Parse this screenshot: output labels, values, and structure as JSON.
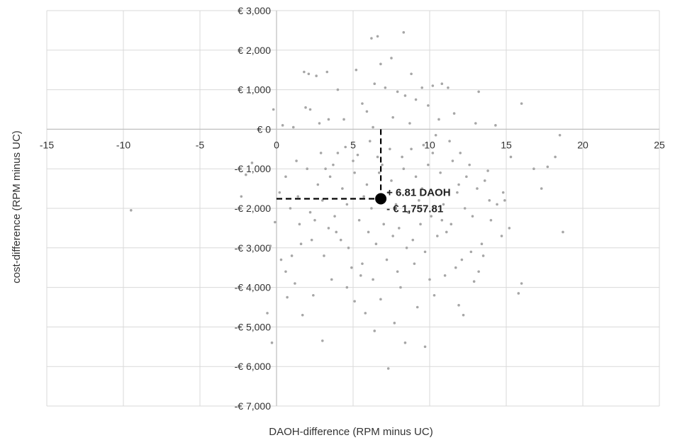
{
  "chart_data": {
    "type": "scatter",
    "title": "",
    "xlabel": "DAOH-difference (RPM minus UC)",
    "ylabel": "cost-difference (RPM minus UC)",
    "xlim": [
      -15,
      25
    ],
    "ylim": [
      -7000,
      3000
    ],
    "x_ticks": [
      -15,
      -10,
      -5,
      0,
      5,
      10,
      15,
      20,
      25
    ],
    "x_tick_labels": [
      "-15",
      "-10",
      "-5",
      "0",
      "5",
      "10",
      "15",
      "20",
      "25"
    ],
    "y_ticks": [
      3000,
      2000,
      1000,
      0,
      -1000,
      -2000,
      -3000,
      -4000,
      -5000,
      -6000,
      -7000
    ],
    "y_tick_labels": [
      "€ 3,000",
      "€ 2,000",
      "€ 1,000",
      "€ 0",
      "-€ 1,000",
      "-€ 2,000",
      "-€ 3,000",
      "-€ 4,000",
      "-€ 5,000",
      "-€ 6,000",
      "-€ 7,000"
    ],
    "grid": true,
    "point_color": "#a6a6a6",
    "mean_marker_color": "#000000",
    "mean_point": {
      "x": 6.81,
      "y": -1757.81
    },
    "annotations": [
      "+ 6.81 DAOH",
      "- € 1,757.81"
    ],
    "series": [
      {
        "points": [
          [
            6.2,
            2300
          ],
          [
            6.6,
            2350
          ],
          [
            8.3,
            2450
          ],
          [
            7.5,
            1800
          ],
          [
            6.8,
            1650
          ],
          [
            5.2,
            1500
          ],
          [
            8.8,
            1400
          ],
          [
            1.8,
            1450
          ],
          [
            2.1,
            1400
          ],
          [
            2.6,
            1350
          ],
          [
            3.3,
            1450
          ],
          [
            4.0,
            1000
          ],
          [
            6.4,
            1150
          ],
          [
            7.1,
            1050
          ],
          [
            7.9,
            950
          ],
          [
            9.5,
            1050
          ],
          [
            10.2,
            1100
          ],
          [
            10.8,
            1150
          ],
          [
            11.2,
            1050
          ],
          [
            13.2,
            950
          ],
          [
            8.4,
            850
          ],
          [
            9.1,
            750
          ],
          [
            5.6,
            650
          ],
          [
            1.9,
            550
          ],
          [
            2.2,
            500
          ],
          [
            -0.2,
            500
          ],
          [
            4.4,
            250
          ],
          [
            3.4,
            250
          ],
          [
            5.9,
            450
          ],
          [
            7.6,
            300
          ],
          [
            9.9,
            600
          ],
          [
            11.6,
            400
          ],
          [
            16.0,
            650
          ],
          [
            13.0,
            150
          ],
          [
            14.3,
            100
          ],
          [
            2.8,
            150
          ],
          [
            0.4,
            100
          ],
          [
            1.1,
            50
          ],
          [
            6.3,
            50
          ],
          [
            8.7,
            150
          ],
          [
            10.6,
            250
          ],
          [
            17.7,
            -950
          ],
          [
            16.8,
            -1000
          ],
          [
            18.2,
            -700
          ],
          [
            18.5,
            -150
          ],
          [
            17.3,
            -1500
          ],
          [
            18.7,
            -2600
          ],
          [
            16.0,
            -3900
          ],
          [
            15.8,
            -4150
          ],
          [
            15.2,
            -2500
          ],
          [
            14.7,
            -2700
          ],
          [
            14.8,
            -1600
          ],
          [
            14.9,
            -1800
          ],
          [
            15.3,
            -700
          ],
          [
            13.8,
            -1050
          ],
          [
            13.5,
            -3200
          ],
          [
            13.2,
            -3600
          ],
          [
            12.9,
            -3850
          ],
          [
            11.9,
            -4450
          ],
          [
            12.2,
            -4700
          ],
          [
            9.7,
            -5500
          ],
          [
            8.4,
            -5400
          ],
          [
            7.3,
            -6050
          ],
          [
            6.4,
            -5100
          ],
          [
            5.8,
            -4650
          ],
          [
            5.1,
            -4350
          ],
          [
            3.0,
            -5350
          ],
          [
            1.7,
            -4700
          ],
          [
            0.7,
            -4250
          ],
          [
            -0.6,
            -4650
          ],
          [
            -0.3,
            -5400
          ],
          [
            -9.5,
            -2050
          ],
          [
            -2.3,
            -1700
          ],
          [
            -2.0,
            -1150
          ],
          [
            -1.6,
            -850
          ],
          [
            -0.4,
            -2950
          ],
          [
            -0.1,
            -2350
          ],
          [
            0.3,
            -3300
          ],
          [
            0.6,
            -3600
          ],
          [
            1.2,
            -3900
          ],
          [
            2.4,
            -4200
          ],
          [
            3.6,
            -3800
          ],
          [
            4.6,
            -4000
          ],
          [
            5.5,
            -3700
          ],
          [
            6.8,
            -4300
          ],
          [
            7.7,
            -4900
          ],
          [
            9.2,
            -4500
          ],
          [
            10.3,
            -4200
          ],
          [
            11.0,
            -3700
          ],
          [
            12.1,
            -3300
          ],
          [
            13.4,
            -2900
          ],
          [
            14.0,
            -2300
          ],
          [
            14.4,
            -1900
          ],
          [
            13.6,
            -1300
          ],
          [
            12.6,
            -900
          ],
          [
            12.0,
            -600
          ],
          [
            11.3,
            -300
          ],
          [
            10.4,
            -150
          ],
          [
            9.6,
            -400
          ],
          [
            8.2,
            -700
          ],
          [
            7.4,
            -500
          ],
          [
            6.1,
            -300
          ],
          [
            5.3,
            -650
          ],
          [
            4.5,
            -450
          ],
          [
            3.7,
            -900
          ],
          [
            2.9,
            -600
          ],
          [
            2.0,
            -1000
          ],
          [
            1.3,
            -800
          ],
          [
            0.6,
            -1200
          ],
          [
            0.2,
            -1600
          ],
          [
            0.9,
            -2000
          ],
          [
            1.5,
            -2400
          ],
          [
            2.3,
            -2800
          ],
          [
            3.1,
            -3200
          ],
          [
            3.9,
            -2600
          ],
          [
            4.7,
            -3000
          ],
          [
            5.6,
            -3400
          ],
          [
            6.5,
            -2900
          ],
          [
            7.2,
            -3300
          ],
          [
            8.0,
            -2500
          ],
          [
            8.9,
            -2800
          ],
          [
            9.7,
            -3100
          ],
          [
            10.5,
            -2700
          ],
          [
            11.4,
            -2400
          ],
          [
            12.3,
            -2000
          ],
          [
            11.8,
            -1600
          ],
          [
            10.9,
            -1900
          ],
          [
            10.1,
            -2200
          ],
          [
            9.3,
            -1800
          ],
          [
            8.6,
            -2100
          ],
          [
            7.8,
            -1900
          ],
          [
            7.0,
            -2400
          ],
          [
            6.2,
            -2000
          ],
          [
            5.4,
            -2300
          ],
          [
            4.6,
            -1900
          ],
          [
            3.8,
            -2200
          ],
          [
            3.0,
            -1800
          ],
          [
            2.2,
            -2100
          ],
          [
            1.4,
            -1700
          ],
          [
            2.7,
            -1400
          ],
          [
            3.5,
            -1200
          ],
          [
            4.3,
            -1500
          ],
          [
            5.1,
            -1100
          ],
          [
            5.9,
            -1400
          ],
          [
            6.7,
            -1100
          ],
          [
            7.5,
            -1300
          ],
          [
            8.3,
            -1000
          ],
          [
            9.1,
            -1200
          ],
          [
            9.9,
            -900
          ],
          [
            10.7,
            -1100
          ],
          [
            11.5,
            -800
          ],
          [
            12.4,
            -1200
          ],
          [
            13.1,
            -1500
          ],
          [
            13.9,
            -1800
          ],
          [
            12.8,
            -2200
          ],
          [
            11.1,
            -2600
          ],
          [
            9.4,
            -2400
          ],
          [
            8.5,
            -3000
          ],
          [
            7.6,
            -2700
          ],
          [
            6.0,
            -2600
          ],
          [
            4.2,
            -2800
          ],
          [
            3.4,
            -2500
          ],
          [
            2.5,
            -2300
          ],
          [
            1.6,
            -2900
          ],
          [
            1.0,
            -3200
          ],
          [
            4.9,
            -3500
          ],
          [
            6.3,
            -3800
          ],
          [
            7.9,
            -3600
          ],
          [
            9.0,
            -3400
          ],
          [
            10.0,
            -3800
          ],
          [
            11.7,
            -3500
          ],
          [
            12.7,
            -3100
          ],
          [
            8.1,
            -4000
          ],
          [
            5.0,
            -800
          ],
          [
            6.6,
            -700
          ],
          [
            8.8,
            -500
          ],
          [
            10.2,
            -600
          ],
          [
            11.9,
            -1400
          ],
          [
            4.0,
            -600
          ],
          [
            3.2,
            -1000
          ],
          [
            6.9,
            -900
          ],
          [
            9.5,
            -1500
          ],
          [
            10.8,
            -2300
          ],
          [
            7.3,
            -1600
          ],
          [
            5.7,
            -1700
          ]
        ]
      }
    ]
  }
}
